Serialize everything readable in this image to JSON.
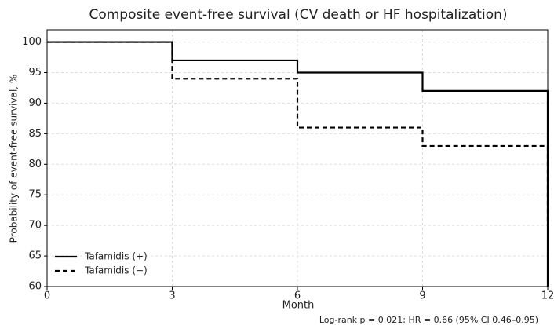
{
  "chart_data": {
    "type": "step",
    "title": "Composite event-free survival (CV death or HF hospitalization)",
    "x_label": "Month",
    "y_label": "Probability of event-free survival, %",
    "x": [
      0,
      3,
      6,
      9,
      12,
      12
    ],
    "series": [
      {
        "name": "Tafamidis (+)",
        "color": "#000000",
        "line_style": "solid",
        "values": [
          100,
          97,
          95,
          92,
          92,
          60
        ]
      },
      {
        "name": "Tafamidis (−)",
        "color": "#000000",
        "line_style": "dashed",
        "values": [
          100,
          94,
          86,
          83,
          83,
          70
        ]
      }
    ],
    "xlim": [
      0,
      12
    ],
    "xticks": [
      0,
      3,
      6,
      9,
      12
    ],
    "ylim": [
      60,
      102
    ],
    "yticks": [
      60,
      65,
      70,
      75,
      80,
      85,
      90,
      95,
      100
    ],
    "grid": true,
    "legend": "lower left",
    "annotation": "Log-rank p = 0.021; HR = 0.66 (95% CI 0.46–0.95)"
  }
}
